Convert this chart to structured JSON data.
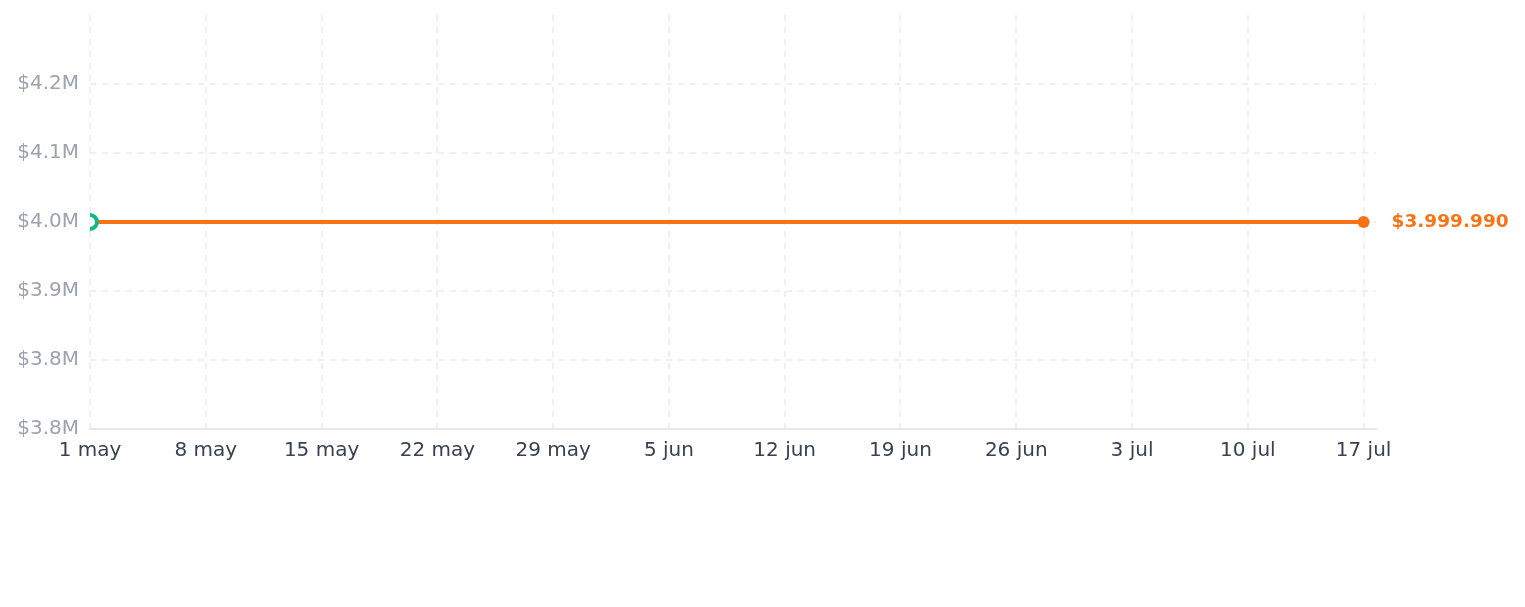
{
  "chart_data": {
    "type": "line",
    "xlim": [
      "--05-01",
      "--07-17T18:00"
    ],
    "xticks": [
      {
        "value": "--05-01",
        "label": "1 may"
      },
      {
        "value": "--05-08",
        "label": "8 may"
      },
      {
        "value": "--05-15",
        "label": "15 may"
      },
      {
        "value": "--05-22",
        "label": "22 may"
      },
      {
        "value": "--05-29",
        "label": "29 may"
      },
      {
        "value": "--06-05",
        "label": "5 jun"
      },
      {
        "value": "--06-12",
        "label": "12 jun"
      },
      {
        "value": "--06-19",
        "label": "19 jun"
      },
      {
        "value": "--06-26",
        "label": "26 jun"
      },
      {
        "value": "--07-03",
        "label": "3 jul"
      },
      {
        "value": "--07-10",
        "label": "10 jul"
      },
      {
        "value": "--07-17",
        "label": "17 jul"
      }
    ],
    "ylim": [
      3760000,
      4240000
    ],
    "yticks": [
      {
        "value": 3760000,
        "label": "$3.8M"
      },
      {
        "value": 3840000,
        "label": "$3.8M"
      },
      {
        "value": 3920000,
        "label": "$3.9M"
      },
      {
        "value": 4000000,
        "label": "$4.0M"
      },
      {
        "value": 4080000,
        "label": "$4.1M"
      },
      {
        "value": 4160000,
        "label": "$4.2M"
      }
    ],
    "grid": true,
    "marker": "circle",
    "series": [
      {
        "color": "#f97316",
        "x": [
          "--05-01",
          "--07-17"
        ],
        "values": [
          3999990,
          3999990
        ],
        "value_labels": [
          null,
          "$3.999.990"
        ]
      },
      {
        "type": "scatter",
        "color": "#10b981",
        "x": [
          "--05-01"
        ],
        "values": [
          3999990
        ]
      }
    ]
  }
}
